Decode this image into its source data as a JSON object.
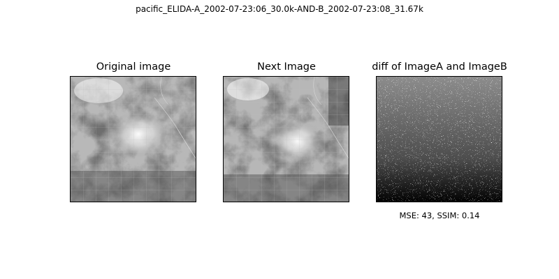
{
  "suptitle": "pacific_ELIDA-A_2002-07-23:06_30.0k-AND-B_2002-07-23:08_31.67k",
  "panels": [
    {
      "title": "Original image",
      "kind": "satellite"
    },
    {
      "title": "Next Image",
      "kind": "satellite"
    },
    {
      "title": "diff of ImageA and ImageB",
      "kind": "difference"
    }
  ],
  "metrics": {
    "caption": "MSE: 43, SSIM: 0.14"
  }
}
